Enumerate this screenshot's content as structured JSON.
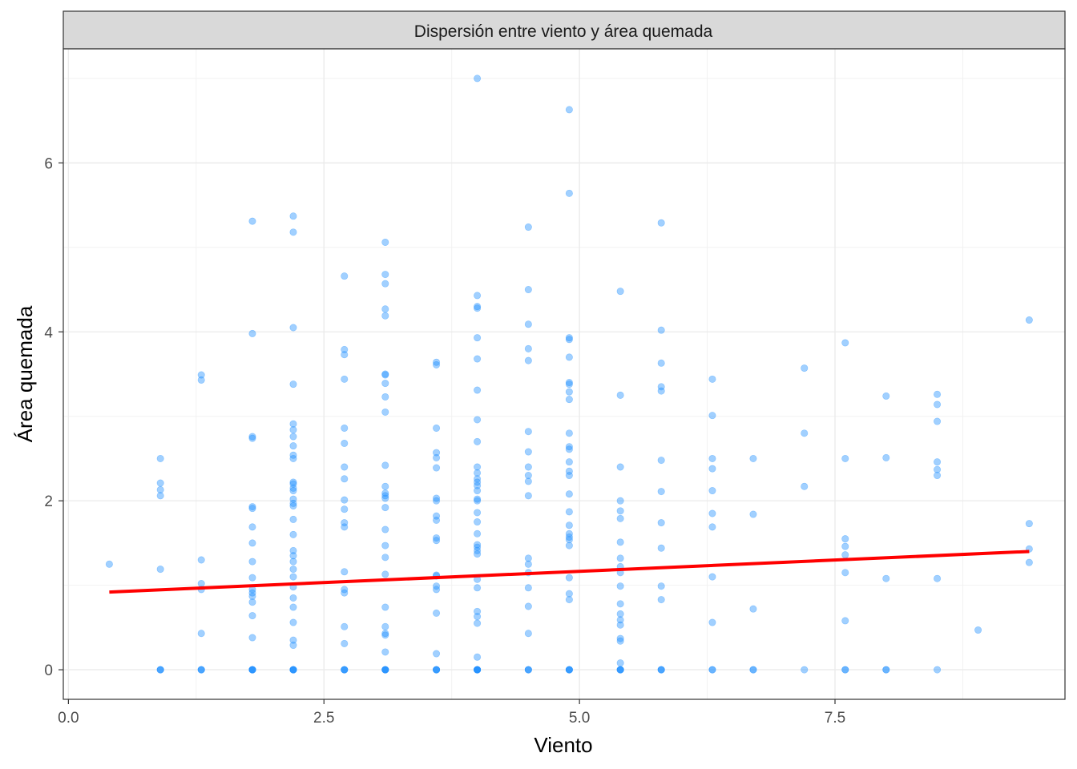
{
  "chart_data": {
    "type": "scatter",
    "title": "Dispersión entre viento y área quemada",
    "xlabel": "Viento",
    "ylabel": "Área quemada",
    "xlim": [
      -0.05,
      9.75
    ],
    "ylim": [
      -0.35,
      7.35
    ],
    "xticks": [
      0.0,
      2.5,
      5.0,
      7.5
    ],
    "xtick_labels": [
      "0.0",
      "2.5",
      "5.0",
      "7.5"
    ],
    "yticks": [
      0,
      2,
      4,
      6
    ],
    "ytick_labels": [
      "0",
      "2",
      "4",
      "6"
    ],
    "grid": true,
    "colors": {
      "points": "#1e90ff",
      "trend": "#ff0000",
      "strip": "#d9d9d9"
    },
    "trend_line": {
      "x": [
        0.4,
        9.4
      ],
      "y": [
        0.92,
        1.4
      ]
    },
    "points_by_x": [
      {
        "x": 0.4,
        "y": [
          1.25
        ]
      },
      {
        "x": 0.9,
        "y": [
          0,
          0,
          0,
          1.19,
          2.06,
          2.13,
          2.21,
          2.5
        ]
      },
      {
        "x": 1.3,
        "y": [
          0,
          0,
          0,
          0.43,
          0.95,
          1.02,
          1.3,
          3.43,
          3.49
        ]
      },
      {
        "x": 1.8,
        "y": [
          0,
          0,
          0,
          0,
          0,
          0.38,
          0.64,
          0.8,
          0.87,
          0.91,
          0.95,
          1.09,
          1.28,
          1.5,
          1.69,
          1.91,
          1.93,
          2.74,
          2.76,
          3.98,
          5.31
        ]
      },
      {
        "x": 2.2,
        "y": [
          0,
          0,
          0,
          0,
          0,
          0.29,
          0.35,
          0.56,
          0.74,
          0.85,
          0.98,
          1.1,
          1.19,
          1.28,
          1.35,
          1.41,
          1.6,
          1.78,
          1.94,
          1.97,
          2.02,
          2.12,
          2.15,
          2.2,
          2.22,
          2.5,
          2.54,
          2.65,
          2.76,
          2.84,
          2.91,
          3.38,
          4.05,
          5.18,
          5.37
        ]
      },
      {
        "x": 2.7,
        "y": [
          0,
          0,
          0,
          0,
          0.31,
          0.51,
          0.91,
          0.95,
          1.16,
          1.69,
          1.74,
          1.9,
          2.01,
          2.26,
          2.4,
          2.68,
          2.86,
          3.44,
          3.73,
          3.79,
          4.66
        ]
      },
      {
        "x": 3.1,
        "y": [
          0,
          0,
          0,
          0,
          0,
          0.21,
          0.41,
          0.43,
          0.51,
          0.74,
          1.13,
          1.33,
          1.47,
          1.66,
          1.92,
          2.03,
          2.06,
          2.09,
          2.17,
          2.42,
          3.05,
          3.23,
          3.39,
          3.49,
          3.5,
          4.19,
          4.27,
          4.57,
          4.68,
          5.06
        ]
      },
      {
        "x": 3.6,
        "y": [
          0,
          0,
          0,
          0,
          0.19,
          0.67,
          0.95,
          0.99,
          1.11,
          1.12,
          1.53,
          1.56,
          1.77,
          1.82,
          2.0,
          2.03,
          2.39,
          2.51,
          2.57,
          2.86,
          3.61,
          3.64
        ]
      },
      {
        "x": 4.0,
        "y": [
          0,
          0,
          0,
          0,
          0,
          0,
          0.15,
          0.55,
          0.63,
          0.69,
          0.97,
          1.07,
          1.37,
          1.41,
          1.45,
          1.48,
          1.61,
          1.75,
          1.86,
          2.0,
          2.02,
          2.12,
          2.18,
          2.22,
          2.26,
          2.33,
          2.4,
          2.7,
          2.96,
          3.31,
          3.68,
          3.93,
          4.28,
          4.3,
          4.43,
          7.0
        ]
      },
      {
        "x": 4.5,
        "y": [
          0,
          0,
          0,
          0.43,
          0.75,
          0.97,
          1.15,
          1.25,
          1.32,
          2.06,
          2.23,
          2.3,
          2.4,
          2.58,
          2.82,
          3.66,
          3.8,
          4.09,
          4.5,
          5.24
        ]
      },
      {
        "x": 4.9,
        "y": [
          0,
          0,
          0,
          0,
          0.83,
          0.9,
          1.09,
          1.47,
          1.54,
          1.57,
          1.61,
          1.71,
          1.87,
          2.08,
          2.3,
          2.35,
          2.46,
          2.61,
          2.64,
          2.8,
          3.2,
          3.29,
          3.38,
          3.4,
          3.7,
          3.91,
          3.93,
          5.64,
          6.63
        ]
      },
      {
        "x": 5.4,
        "y": [
          0,
          0,
          0,
          0,
          0.08,
          0.34,
          0.37,
          0.53,
          0.59,
          0.66,
          0.78,
          0.99,
          1.15,
          1.22,
          1.32,
          1.51,
          1.79,
          1.88,
          2.0,
          2.4,
          3.25,
          4.48
        ]
      },
      {
        "x": 5.8,
        "y": [
          0,
          0,
          0,
          0.83,
          0.99,
          1.44,
          1.74,
          2.11,
          2.48,
          3.3,
          3.35,
          3.63,
          4.02,
          5.29
        ]
      },
      {
        "x": 6.3,
        "y": [
          0,
          0,
          0.56,
          1.1,
          1.69,
          1.85,
          2.12,
          2.38,
          2.5,
          3.01,
          3.44
        ]
      },
      {
        "x": 6.7,
        "y": [
          0,
          0,
          0.72,
          1.84,
          2.5
        ]
      },
      {
        "x": 7.2,
        "y": [
          0,
          2.17,
          2.8,
          3.57
        ]
      },
      {
        "x": 7.6,
        "y": [
          0,
          0,
          0.58,
          1.15,
          1.36,
          1.46,
          1.55,
          2.5,
          3.87
        ]
      },
      {
        "x": 8.0,
        "y": [
          0,
          0,
          1.08,
          2.51,
          3.24
        ]
      },
      {
        "x": 8.5,
        "y": [
          0,
          1.08,
          2.3,
          2.37,
          2.46,
          2.94,
          3.14,
          3.26
        ]
      },
      {
        "x": 8.9,
        "y": [
          0.47
        ]
      },
      {
        "x": 9.4,
        "y": [
          1.27,
          1.43,
          1.73,
          4.14
        ]
      }
    ]
  }
}
